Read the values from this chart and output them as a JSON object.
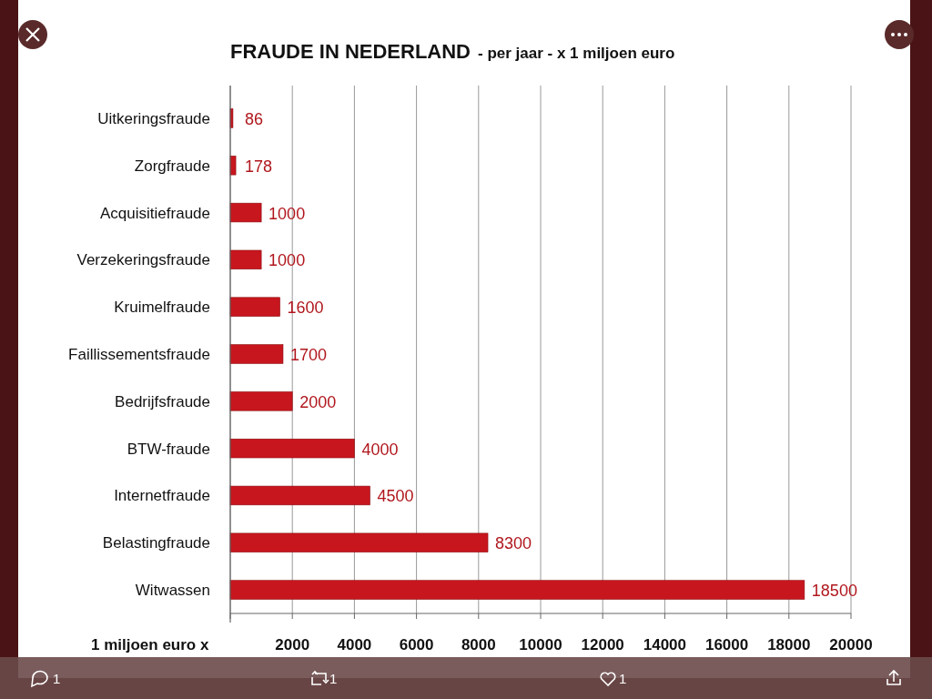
{
  "chart_data": {
    "type": "bar",
    "orientation": "horizontal",
    "title": "FRAUDE IN NEDERLAND",
    "subtitle": "- per jaar - x 1 miljoen euro",
    "xlabel": "1 miljoen euro x",
    "categories": [
      "Uitkeringsfraude",
      "Zorgfraude",
      "Acquisitiefraude",
      "Verzekeringsfraude",
      "Kruimelfraude",
      "Faillissementsfraude",
      "Bedrijfsfraude",
      "BTW-fraude",
      "Internetfraude",
      "Belastingfraude",
      "Witwassen"
    ],
    "values": [
      86,
      178,
      1000,
      1000,
      1600,
      1700,
      2000,
      4000,
      4500,
      8300,
      18500
    ],
    "color": "#c8161e",
    "data_labels": true,
    "xlim": [
      0,
      20000
    ],
    "xticks": [
      {
        "value": 0,
        "label": null
      },
      2000,
      4000,
      6000,
      8000,
      10000,
      12000,
      14000,
      16000,
      18000,
      20000
    ],
    "grid": "x",
    "annotations": [
      "1",
      "1",
      "1"
    ]
  }
}
